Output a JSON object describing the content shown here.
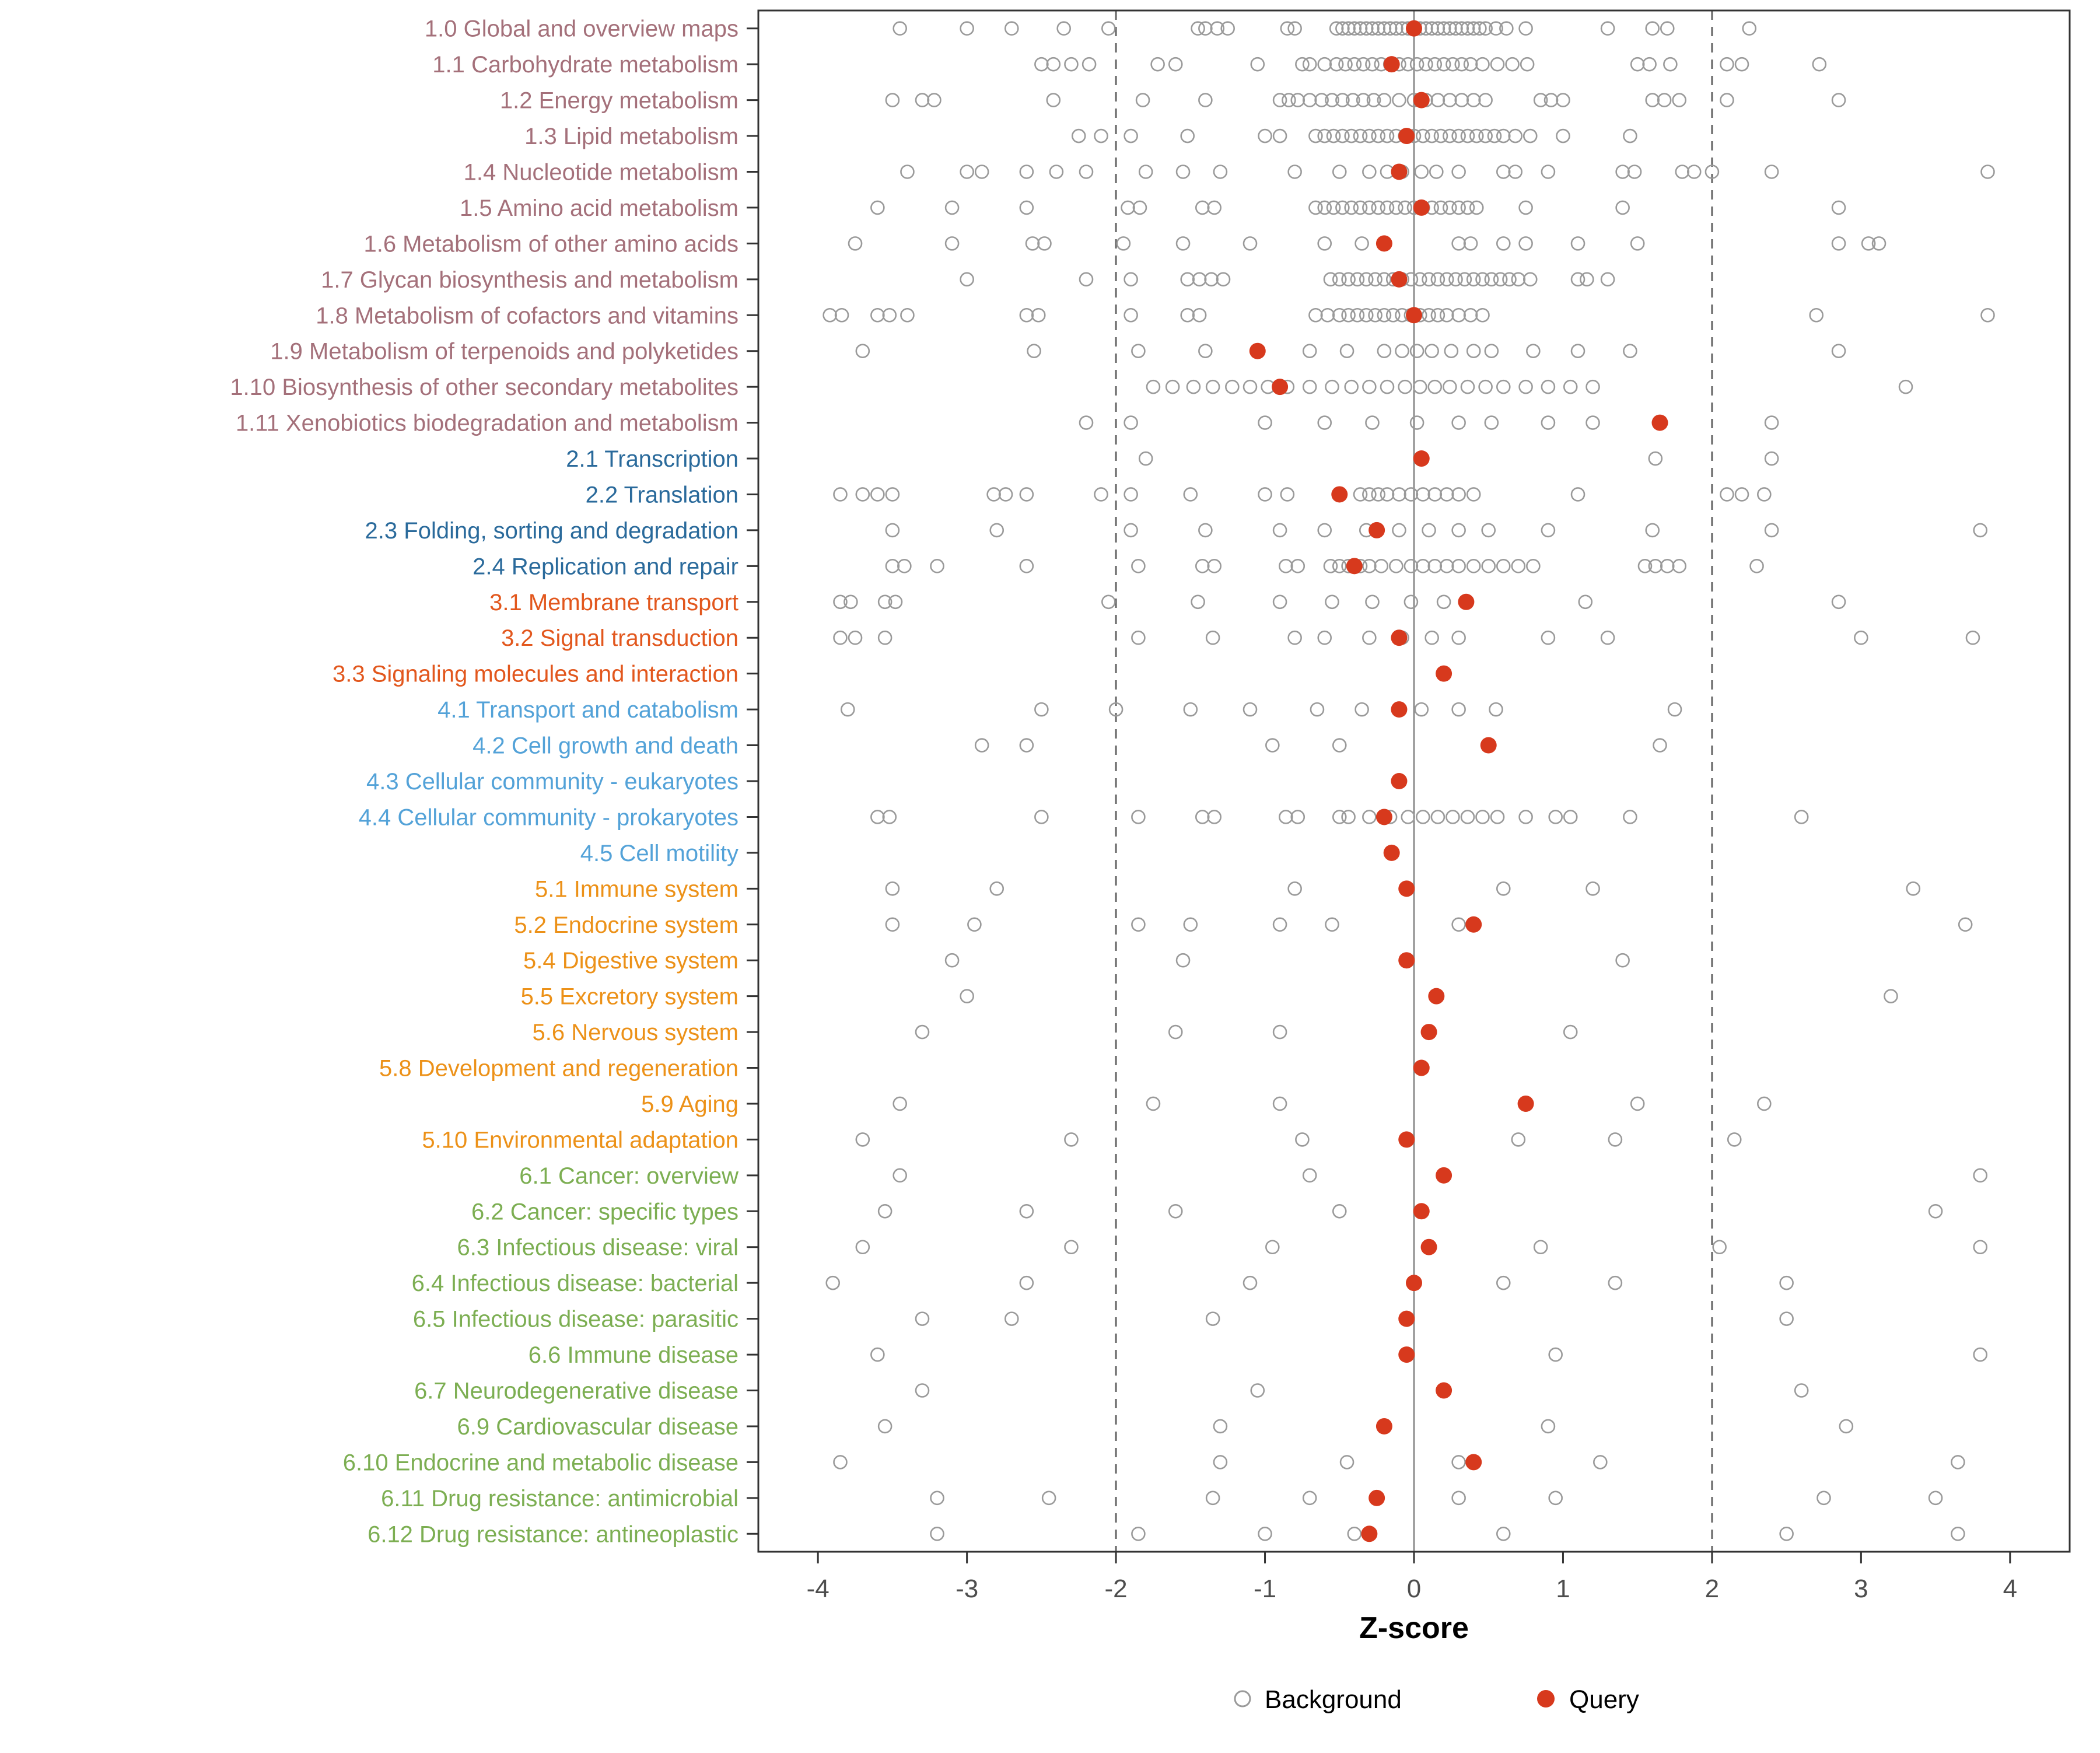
{
  "axis": {
    "xlabel": "Z-score"
  },
  "legend": {
    "background_label": "Background",
    "query_label": "Query"
  },
  "colors": {
    "query": "#D7391D",
    "background_stroke": "#9A9A9A",
    "panel_border": "#333333",
    "zero_line": "#8C8C8C",
    "dashed_line": "#666666",
    "group_colors": {
      "1": "#A4707A",
      "2": "#2A6A9B",
      "3": "#E2571D",
      "4": "#53A2D8",
      "5": "#EC9118",
      "6": "#7CAE52"
    }
  },
  "chart_data": {
    "type": "scatter",
    "title": "",
    "xlabel": "Z-score",
    "ylabel": "",
    "xlim": [
      -4.4,
      4.4
    ],
    "x_ticks": [
      -4,
      -3,
      -2,
      -1,
      0,
      1,
      2,
      3,
      4
    ],
    "reference_lines": {
      "solid": [
        0
      ],
      "dashed": [
        -2,
        2
      ]
    },
    "legend_entries": [
      "Background",
      "Query"
    ],
    "legend_position": "bottom",
    "grid": false,
    "rows": [
      {
        "label": "1.0 Global and overview maps",
        "group": "1",
        "query": 0.0,
        "background": [
          -3.45,
          -3.0,
          -2.7,
          -2.35,
          -2.05,
          -1.45,
          -1.4,
          -1.32,
          -1.25,
          -0.85,
          -0.8,
          -0.52,
          -0.48,
          -0.44,
          -0.4,
          -0.36,
          -0.32,
          -0.28,
          -0.24,
          -0.2,
          -0.16,
          -0.12,
          -0.08,
          -0.04,
          0.0,
          0.04,
          0.08,
          0.12,
          0.16,
          0.2,
          0.24,
          0.28,
          0.32,
          0.36,
          0.4,
          0.44,
          0.48,
          0.55,
          0.62,
          0.75,
          1.3,
          1.6,
          1.7,
          2.25
        ]
      },
      {
        "label": "1.1 Carbohydrate metabolism",
        "group": "1",
        "query": -0.15,
        "background": [
          -2.5,
          -2.42,
          -2.3,
          -2.18,
          -1.72,
          -1.6,
          -1.05,
          -0.75,
          -0.7,
          -0.6,
          -0.52,
          -0.46,
          -0.4,
          -0.34,
          -0.28,
          -0.22,
          -0.16,
          -0.1,
          -0.04,
          0.02,
          0.08,
          0.14,
          0.2,
          0.26,
          0.32,
          0.38,
          0.46,
          0.56,
          0.66,
          0.76,
          1.5,
          1.58,
          1.72,
          2.1,
          2.2,
          2.72
        ]
      },
      {
        "label": "1.2 Energy metabolism",
        "group": "1",
        "query": 0.05,
        "background": [
          -3.5,
          -3.3,
          -3.22,
          -2.42,
          -1.82,
          -1.4,
          -0.9,
          -0.84,
          -0.78,
          -0.7,
          -0.62,
          -0.55,
          -0.48,
          -0.41,
          -0.34,
          -0.27,
          -0.2,
          -0.1,
          0.0,
          0.08,
          0.16,
          0.24,
          0.32,
          0.4,
          0.48,
          0.85,
          0.92,
          1.0,
          1.6,
          1.68,
          1.78,
          2.1,
          2.85
        ]
      },
      {
        "label": "1.3 Lipid metabolism",
        "group": "1",
        "query": -0.05,
        "background": [
          -2.25,
          -2.1,
          -1.9,
          -1.52,
          -1.0,
          -0.9,
          -0.66,
          -0.6,
          -0.54,
          -0.48,
          -0.42,
          -0.36,
          -0.3,
          -0.24,
          -0.18,
          -0.12,
          -0.06,
          0.0,
          0.06,
          0.12,
          0.18,
          0.24,
          0.3,
          0.36,
          0.42,
          0.48,
          0.54,
          0.6,
          0.68,
          0.78,
          1.0,
          1.45
        ]
      },
      {
        "label": "1.4 Nucleotide metabolism",
        "group": "1",
        "query": -0.1,
        "background": [
          -3.4,
          -3.0,
          -2.9,
          -2.6,
          -2.4,
          -2.2,
          -1.8,
          -1.55,
          -1.3,
          -0.8,
          -0.5,
          -0.3,
          -0.18,
          -0.08,
          0.05,
          0.15,
          0.3,
          0.6,
          0.68,
          0.9,
          1.4,
          1.48,
          1.8,
          1.88,
          2.0,
          2.4,
          3.85
        ]
      },
      {
        "label": "1.5 Amino acid metabolism",
        "group": "1",
        "query": 0.05,
        "background": [
          -3.6,
          -3.1,
          -2.6,
          -1.92,
          -1.84,
          -1.42,
          -1.34,
          -0.66,
          -0.6,
          -0.54,
          -0.48,
          -0.42,
          -0.36,
          -0.3,
          -0.24,
          -0.18,
          -0.12,
          -0.06,
          0.0,
          0.06,
          0.12,
          0.18,
          0.24,
          0.3,
          0.36,
          0.42,
          0.75,
          1.4,
          2.85
        ]
      },
      {
        "label": "1.6 Metabolism of other amino acids",
        "group": "1",
        "query": -0.2,
        "background": [
          -3.75,
          -3.1,
          -2.56,
          -2.48,
          -1.95,
          -1.55,
          -1.1,
          -0.6,
          -0.35,
          0.3,
          0.38,
          0.6,
          0.75,
          1.1,
          1.5,
          2.85,
          3.05,
          3.12
        ]
      },
      {
        "label": "1.7 Glycan biosynthesis and metabolism",
        "group": "1",
        "query": -0.1,
        "background": [
          -3.0,
          -2.2,
          -1.9,
          -1.52,
          -1.44,
          -1.36,
          -1.28,
          -0.56,
          -0.5,
          -0.44,
          -0.38,
          -0.32,
          -0.26,
          -0.2,
          -0.14,
          -0.08,
          -0.02,
          0.04,
          0.1,
          0.16,
          0.22,
          0.28,
          0.34,
          0.4,
          0.46,
          0.52,
          0.58,
          0.64,
          0.7,
          0.78,
          1.1,
          1.16,
          1.3
        ]
      },
      {
        "label": "1.8 Metabolism of cofactors and vitamins",
        "group": "1",
        "query": 0.0,
        "background": [
          -3.92,
          -3.84,
          -3.6,
          -3.52,
          -3.4,
          -2.6,
          -2.52,
          -1.9,
          -1.52,
          -1.44,
          -0.66,
          -0.58,
          -0.5,
          -0.44,
          -0.38,
          -0.32,
          -0.26,
          -0.2,
          -0.14,
          -0.08,
          -0.02,
          0.04,
          0.1,
          0.16,
          0.22,
          0.3,
          0.38,
          0.46,
          2.7,
          3.85
        ]
      },
      {
        "label": "1.9 Metabolism of terpenoids and polyketides",
        "group": "1",
        "query": -1.05,
        "background": [
          -3.7,
          -2.55,
          -1.85,
          -1.4,
          -0.7,
          -0.45,
          -0.2,
          -0.08,
          0.02,
          0.12,
          0.25,
          0.4,
          0.52,
          0.8,
          1.1,
          1.45,
          2.85
        ]
      },
      {
        "label": "1.10 Biosynthesis of other secondary metabolites",
        "group": "1",
        "query": -0.9,
        "background": [
          -1.75,
          -1.62,
          -1.48,
          -1.35,
          -1.22,
          -1.1,
          -0.98,
          -0.85,
          -0.7,
          -0.55,
          -0.42,
          -0.3,
          -0.18,
          -0.06,
          0.04,
          0.14,
          0.24,
          0.36,
          0.48,
          0.6,
          0.75,
          0.9,
          1.05,
          1.2,
          3.3
        ]
      },
      {
        "label": "1.11 Xenobiotics biodegradation and metabolism",
        "group": "1",
        "query": 1.65,
        "background": [
          -2.2,
          -1.9,
          -1.0,
          -0.6,
          -0.28,
          0.02,
          0.3,
          0.52,
          0.9,
          1.2,
          2.4
        ]
      },
      {
        "label": "2.1 Transcription",
        "group": "2",
        "query": 0.05,
        "background": [
          -1.8,
          1.62,
          2.4
        ]
      },
      {
        "label": "2.2 Translation",
        "group": "2",
        "query": -0.5,
        "background": [
          -3.85,
          -3.7,
          -3.6,
          -3.5,
          -2.82,
          -2.74,
          -2.6,
          -2.1,
          -1.9,
          -1.5,
          -1.0,
          -0.85,
          -0.36,
          -0.3,
          -0.24,
          -0.18,
          -0.1,
          -0.02,
          0.06,
          0.14,
          0.22,
          0.3,
          0.4,
          1.1,
          2.1,
          2.2,
          2.35
        ]
      },
      {
        "label": "2.3 Folding, sorting and degradation",
        "group": "2",
        "query": -0.25,
        "background": [
          -3.5,
          -2.8,
          -1.9,
          -1.4,
          -0.9,
          -0.6,
          -0.32,
          -0.1,
          0.1,
          0.3,
          0.5,
          0.9,
          1.6,
          2.4,
          3.8
        ]
      },
      {
        "label": "2.4 Replication and repair",
        "group": "2",
        "query": -0.4,
        "background": [
          -3.5,
          -3.42,
          -3.2,
          -2.6,
          -1.85,
          -1.42,
          -1.34,
          -0.86,
          -0.78,
          -0.56,
          -0.5,
          -0.44,
          -0.36,
          -0.3,
          -0.22,
          -0.12,
          -0.02,
          0.06,
          0.14,
          0.22,
          0.3,
          0.4,
          0.5,
          0.6,
          0.7,
          0.8,
          1.55,
          1.62,
          1.7,
          1.78,
          2.3
        ]
      },
      {
        "label": "3.1 Membrane transport",
        "group": "3",
        "query": 0.35,
        "background": [
          -3.85,
          -3.78,
          -3.55,
          -3.48,
          -2.05,
          -1.45,
          -0.9,
          -0.55,
          -0.28,
          -0.02,
          0.2,
          1.15,
          2.85
        ]
      },
      {
        "label": "3.2 Signal transduction",
        "group": "3",
        "query": -0.1,
        "background": [
          -3.85,
          -3.75,
          -3.55,
          -1.85,
          -1.35,
          -0.8,
          -0.6,
          -0.3,
          -0.08,
          0.12,
          0.3,
          0.9,
          1.3,
          3.0,
          3.75
        ]
      },
      {
        "label": "3.3 Signaling molecules and interaction",
        "group": "3",
        "query": 0.2,
        "background": []
      },
      {
        "label": "4.1 Transport and catabolism",
        "group": "4",
        "query": -0.1,
        "background": [
          -3.8,
          -2.5,
          -2.0,
          -1.5,
          -1.1,
          -0.65,
          -0.35,
          0.05,
          0.3,
          0.55,
          1.75
        ]
      },
      {
        "label": "4.2 Cell growth and death",
        "group": "4",
        "query": 0.5,
        "background": [
          -2.9,
          -2.6,
          -0.95,
          -0.5,
          1.65
        ]
      },
      {
        "label": "4.3 Cellular community - eukaryotes",
        "group": "4",
        "query": -0.1,
        "background": []
      },
      {
        "label": "4.4 Cellular community - prokaryotes",
        "group": "4",
        "query": -0.2,
        "background": [
          -3.6,
          -3.52,
          -2.5,
          -1.85,
          -1.42,
          -1.34,
          -0.86,
          -0.78,
          -0.5,
          -0.44,
          -0.3,
          -0.16,
          -0.04,
          0.06,
          0.16,
          0.26,
          0.36,
          0.46,
          0.56,
          0.75,
          0.95,
          1.05,
          1.45,
          2.6
        ]
      },
      {
        "label": "4.5 Cell motility",
        "group": "4",
        "query": -0.15,
        "background": []
      },
      {
        "label": "5.1 Immune system",
        "group": "5",
        "query": -0.05,
        "background": [
          -3.5,
          -2.8,
          -0.8,
          0.6,
          1.2,
          3.35
        ]
      },
      {
        "label": "5.2 Endocrine system",
        "group": "5",
        "query": 0.4,
        "background": [
          -3.5,
          -2.95,
          -1.85,
          -1.5,
          -0.9,
          -0.55,
          0.3,
          3.7
        ]
      },
      {
        "label": "5.4 Digestive system",
        "group": "5",
        "query": -0.05,
        "background": [
          -3.1,
          -1.55,
          1.4
        ]
      },
      {
        "label": "5.5 Excretory system",
        "group": "5",
        "query": 0.15,
        "background": [
          -3.0,
          3.2
        ]
      },
      {
        "label": "5.6 Nervous system",
        "group": "5",
        "query": 0.1,
        "background": [
          -3.3,
          -1.6,
          -0.9,
          1.05
        ]
      },
      {
        "label": "5.8 Development and regeneration",
        "group": "5",
        "query": 0.05,
        "background": []
      },
      {
        "label": "5.9 Aging",
        "group": "5",
        "query": 0.75,
        "background": [
          -3.45,
          -1.75,
          -0.9,
          1.5,
          2.35
        ]
      },
      {
        "label": "5.10 Environmental adaptation",
        "group": "5",
        "query": -0.05,
        "background": [
          -3.7,
          -2.3,
          -0.75,
          0.7,
          1.35,
          2.15
        ]
      },
      {
        "label": "6.1 Cancer: overview",
        "group": "6",
        "query": 0.2,
        "background": [
          -3.45,
          -0.7,
          3.8
        ]
      },
      {
        "label": "6.2 Cancer: specific types",
        "group": "6",
        "query": 0.05,
        "background": [
          -3.55,
          -2.6,
          -1.6,
          -0.5,
          3.5
        ]
      },
      {
        "label": "6.3 Infectious disease: viral",
        "group": "6",
        "query": 0.1,
        "background": [
          -3.7,
          -2.3,
          -0.95,
          0.85,
          2.05,
          3.8
        ]
      },
      {
        "label": "6.4 Infectious disease: bacterial",
        "group": "6",
        "query": 0.0,
        "background": [
          -3.9,
          -2.6,
          -1.1,
          0.6,
          1.35,
          2.5
        ]
      },
      {
        "label": "6.5 Infectious disease: parasitic",
        "group": "6",
        "query": -0.05,
        "background": [
          -3.3,
          -2.7,
          -1.35,
          2.5
        ]
      },
      {
        "label": "6.6 Immune disease",
        "group": "6",
        "query": -0.05,
        "background": [
          -3.6,
          0.95,
          3.8
        ]
      },
      {
        "label": "6.7 Neurodegenerative disease",
        "group": "6",
        "query": 0.2,
        "background": [
          -3.3,
          -1.05,
          2.6
        ]
      },
      {
        "label": "6.9 Cardiovascular disease",
        "group": "6",
        "query": -0.2,
        "background": [
          -3.55,
          -1.3,
          0.9,
          2.9
        ]
      },
      {
        "label": "6.10 Endocrine and metabolic disease",
        "group": "6",
        "query": 0.4,
        "background": [
          -3.85,
          -1.3,
          -0.45,
          0.3,
          1.25,
          3.65
        ]
      },
      {
        "label": "6.11 Drug resistance: antimicrobial",
        "group": "6",
        "query": -0.25,
        "background": [
          -3.2,
          -2.45,
          -1.35,
          -0.7,
          -0.25,
          0.3,
          0.95,
          2.75,
          3.5
        ]
      },
      {
        "label": "6.12 Drug resistance: antineoplastic",
        "group": "6",
        "query": -0.3,
        "background": [
          -3.2,
          -1.85,
          -1.0,
          -0.4,
          0.6,
          2.5,
          3.65
        ]
      }
    ]
  }
}
